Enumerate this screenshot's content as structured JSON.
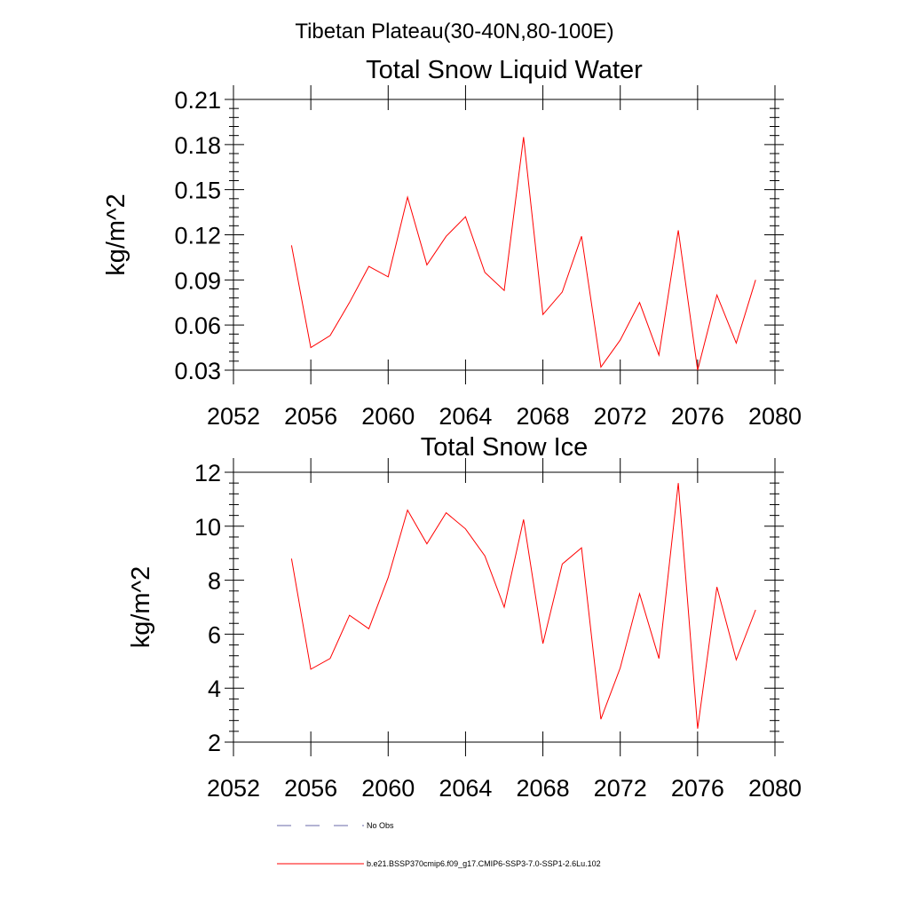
{
  "suptitle": "Tibetan Plateau(30-40N,80-100E)",
  "colors": {
    "series": "#ff0000",
    "obs": "#6a6aaa",
    "axis": "#000000"
  },
  "legend": {
    "placement": "bottom",
    "items": [
      {
        "label": "No Obs",
        "style": "dashed",
        "color": "#6a6aaa"
      },
      {
        "label": "b.e21.BSSP370cmip6.f09_g17.CMIP6-SSP3-7.0-SSP1-2.6Lu.102",
        "style": "solid",
        "color": "#ff0000"
      }
    ]
  },
  "chart_data": [
    {
      "type": "line",
      "title": "Total Snow Liquid Water",
      "xlabel": "",
      "ylabel": "kg/m^2",
      "xlim": [
        2052,
        2080
      ],
      "ylim": [
        0.03,
        0.21
      ],
      "xticks": [
        2052,
        2056,
        2060,
        2064,
        2068,
        2072,
        2076,
        2080
      ],
      "yticks": [
        0.03,
        0.06,
        0.09,
        0.12,
        0.15,
        0.18,
        0.21
      ],
      "ytick_labels": [
        "0.03",
        "0.06",
        "0.09",
        "0.12",
        "0.15",
        "0.18",
        "0.21"
      ],
      "x": [
        2055,
        2056,
        2057,
        2058,
        2059,
        2060,
        2061,
        2062,
        2063,
        2064,
        2065,
        2066,
        2067,
        2068,
        2069,
        2070,
        2071,
        2072,
        2073,
        2074,
        2075,
        2076,
        2077,
        2078,
        2079
      ],
      "series": [
        {
          "values": [
            0.113,
            0.045,
            0.053,
            0.075,
            0.099,
            0.092,
            0.145,
            0.1,
            0.119,
            0.132,
            0.095,
            0.083,
            0.185,
            0.067,
            0.082,
            0.119,
            0.032,
            0.05,
            0.075,
            0.04,
            0.123,
            0.03,
            0.08,
            0.048,
            0.09
          ]
        }
      ],
      "grid": false
    },
    {
      "type": "line",
      "title": "Total Snow Ice",
      "xlabel": "",
      "ylabel": "kg/m^2",
      "xlim": [
        2052,
        2080
      ],
      "ylim": [
        2,
        12
      ],
      "xticks": [
        2052,
        2056,
        2060,
        2064,
        2068,
        2072,
        2076,
        2080
      ],
      "yticks": [
        2,
        4,
        6,
        8,
        10,
        12
      ],
      "ytick_labels": [
        "2",
        "4",
        "6",
        "8",
        "10",
        "12"
      ],
      "x": [
        2055,
        2056,
        2057,
        2058,
        2059,
        2060,
        2061,
        2062,
        2063,
        2064,
        2065,
        2066,
        2067,
        2068,
        2069,
        2070,
        2071,
        2072,
        2073,
        2074,
        2075,
        2076,
        2077,
        2078,
        2079
      ],
      "series": [
        {
          "values": [
            8.8,
            4.7,
            5.1,
            6.7,
            6.2,
            8.1,
            10.6,
            9.35,
            10.5,
            9.9,
            8.9,
            7.0,
            10.25,
            5.65,
            8.6,
            9.2,
            2.85,
            4.75,
            7.5,
            5.1,
            11.6,
            2.5,
            7.75,
            5.05,
            6.9
          ]
        }
      ],
      "grid": false
    }
  ]
}
